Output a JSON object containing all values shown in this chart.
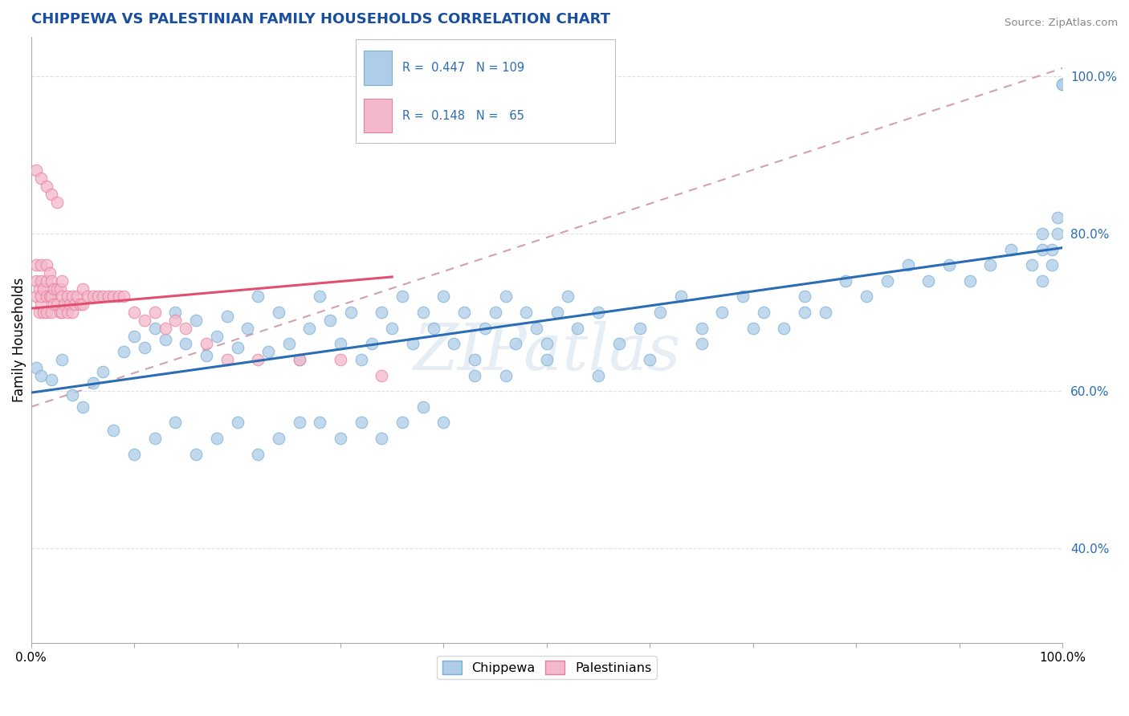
{
  "title": "CHIPPEWA VS PALESTINIAN FAMILY HOUSEHOLDS CORRELATION CHART",
  "source": "Source: ZipAtlas.com",
  "ylabel": "Family Households",
  "xlim": [
    0.0,
    1.0
  ],
  "ylim": [
    0.28,
    1.05
  ],
  "xticks": [
    0.0,
    0.1,
    0.2,
    0.3,
    0.4,
    0.5,
    0.6,
    0.7,
    0.8,
    0.9,
    1.0
  ],
  "xtick_labels": [
    "0.0%",
    "",
    "",
    "",
    "",
    "",
    "",
    "",
    "",
    "",
    "100.0%"
  ],
  "yticks": [
    0.4,
    0.6,
    0.8,
    1.0
  ],
  "ytick_labels": [
    "40.0%",
    "60.0%",
    "80.0%",
    "100.0%"
  ],
  "dot_color_blue": "#aecde8",
  "dot_color_pink": "#f4b8cc",
  "dot_edge_blue": "#7aafd4",
  "dot_edge_pink": "#e8809a",
  "line_color_blue": "#2b6db5",
  "line_color_pink": "#e0506e",
  "line_color_dash": "#d4a0b0",
  "background_color": "#ffffff",
  "grid_color": "#e0e0e0",
  "title_color": "#1a4fa0",
  "ytick_color": "#2b6db5",
  "watermark": "ZIPatlas",
  "blue_line": [
    0.0,
    0.598,
    1.0,
    0.782
  ],
  "pink_line": [
    0.0,
    0.705,
    0.35,
    0.745
  ],
  "dash_line": [
    0.0,
    0.58,
    1.0,
    1.01
  ],
  "chippewa_x": [
    0.005,
    0.01,
    0.02,
    0.03,
    0.04,
    0.05,
    0.06,
    0.07,
    0.09,
    0.1,
    0.11,
    0.12,
    0.13,
    0.14,
    0.15,
    0.16,
    0.17,
    0.18,
    0.19,
    0.2,
    0.21,
    0.22,
    0.23,
    0.24,
    0.25,
    0.26,
    0.27,
    0.28,
    0.29,
    0.3,
    0.31,
    0.32,
    0.33,
    0.34,
    0.35,
    0.36,
    0.37,
    0.38,
    0.39,
    0.4,
    0.41,
    0.42,
    0.43,
    0.44,
    0.45,
    0.46,
    0.47,
    0.48,
    0.49,
    0.5,
    0.51,
    0.52,
    0.53,
    0.55,
    0.57,
    0.59,
    0.61,
    0.63,
    0.65,
    0.67,
    0.69,
    0.71,
    0.73,
    0.75,
    0.77,
    0.79,
    0.81,
    0.83,
    0.85,
    0.87,
    0.89,
    0.91,
    0.93,
    0.95,
    0.97,
    0.98,
    0.98,
    0.98,
    0.99,
    0.99,
    0.995,
    0.995,
    1.0,
    1.0,
    0.08,
    0.1,
    0.12,
    0.14,
    0.16,
    0.18,
    0.2,
    0.22,
    0.24,
    0.26,
    0.28,
    0.3,
    0.32,
    0.34,
    0.36,
    0.38,
    0.4,
    0.43,
    0.46,
    0.5,
    0.55,
    0.6,
    0.65,
    0.7,
    0.75
  ],
  "chippewa_y": [
    0.63,
    0.62,
    0.615,
    0.64,
    0.595,
    0.58,
    0.61,
    0.625,
    0.65,
    0.67,
    0.655,
    0.68,
    0.665,
    0.7,
    0.66,
    0.69,
    0.645,
    0.67,
    0.695,
    0.655,
    0.68,
    0.72,
    0.65,
    0.7,
    0.66,
    0.64,
    0.68,
    0.72,
    0.69,
    0.66,
    0.7,
    0.64,
    0.66,
    0.7,
    0.68,
    0.72,
    0.66,
    0.7,
    0.68,
    0.72,
    0.66,
    0.7,
    0.64,
    0.68,
    0.7,
    0.72,
    0.66,
    0.7,
    0.68,
    0.66,
    0.7,
    0.72,
    0.68,
    0.7,
    0.66,
    0.68,
    0.7,
    0.72,
    0.68,
    0.7,
    0.72,
    0.7,
    0.68,
    0.72,
    0.7,
    0.74,
    0.72,
    0.74,
    0.76,
    0.74,
    0.76,
    0.74,
    0.76,
    0.78,
    0.76,
    0.78,
    0.74,
    0.8,
    0.78,
    0.76,
    0.8,
    0.82,
    0.99,
    0.99,
    0.55,
    0.52,
    0.54,
    0.56,
    0.52,
    0.54,
    0.56,
    0.52,
    0.54,
    0.56,
    0.56,
    0.54,
    0.56,
    0.54,
    0.56,
    0.58,
    0.56,
    0.62,
    0.62,
    0.64,
    0.62,
    0.64,
    0.66,
    0.68,
    0.7
  ],
  "palestinians_x": [
    0.005,
    0.005,
    0.005,
    0.008,
    0.008,
    0.01,
    0.01,
    0.01,
    0.01,
    0.012,
    0.012,
    0.015,
    0.015,
    0.015,
    0.015,
    0.018,
    0.018,
    0.02,
    0.02,
    0.02,
    0.022,
    0.022,
    0.025,
    0.025,
    0.028,
    0.028,
    0.03,
    0.03,
    0.03,
    0.032,
    0.035,
    0.035,
    0.038,
    0.04,
    0.04,
    0.042,
    0.045,
    0.048,
    0.05,
    0.05,
    0.055,
    0.06,
    0.065,
    0.07,
    0.075,
    0.08,
    0.085,
    0.09,
    0.1,
    0.11,
    0.12,
    0.13,
    0.14,
    0.15,
    0.17,
    0.19,
    0.22,
    0.26,
    0.3,
    0.34,
    0.005,
    0.01,
    0.015,
    0.02,
    0.025
  ],
  "palestinians_y": [
    0.72,
    0.74,
    0.76,
    0.7,
    0.73,
    0.71,
    0.72,
    0.74,
    0.76,
    0.7,
    0.73,
    0.7,
    0.72,
    0.74,
    0.76,
    0.72,
    0.75,
    0.7,
    0.72,
    0.74,
    0.71,
    0.73,
    0.71,
    0.73,
    0.7,
    0.73,
    0.7,
    0.72,
    0.74,
    0.71,
    0.7,
    0.72,
    0.71,
    0.7,
    0.72,
    0.71,
    0.72,
    0.71,
    0.71,
    0.73,
    0.72,
    0.72,
    0.72,
    0.72,
    0.72,
    0.72,
    0.72,
    0.72,
    0.7,
    0.69,
    0.7,
    0.68,
    0.69,
    0.68,
    0.66,
    0.64,
    0.64,
    0.64,
    0.64,
    0.62,
    0.88,
    0.87,
    0.86,
    0.85,
    0.84
  ]
}
